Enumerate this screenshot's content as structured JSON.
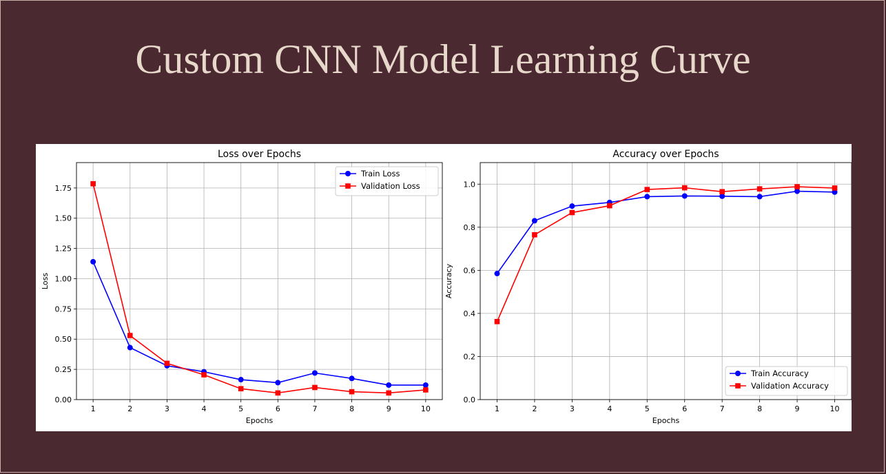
{
  "slide": {
    "title": "Custom CNN Model Learning Curve"
  },
  "chart_data": [
    {
      "type": "line",
      "title": "Loss over Epochs",
      "xlabel": "Epochs",
      "ylabel": "Loss",
      "x": [
        1,
        2,
        3,
        4,
        5,
        6,
        7,
        8,
        9,
        10
      ],
      "xlim": [
        0.55,
        10.45
      ],
      "ylim": [
        0,
        1.96
      ],
      "yticks": [
        0.0,
        0.25,
        0.5,
        0.75,
        1.0,
        1.25,
        1.5,
        1.75
      ],
      "ytick_labels": [
        "0.00",
        "0.25",
        "0.50",
        "0.75",
        "1.00",
        "1.25",
        "1.50",
        "1.75"
      ],
      "xtick_labels": [
        "1",
        "2",
        "3",
        "4",
        "5",
        "6",
        "7",
        "8",
        "9",
        "10"
      ],
      "grid": true,
      "legend_position": "top-right",
      "series": [
        {
          "name": "Train Loss",
          "color": "#0000ff",
          "marker": "circle",
          "values": [
            1.14,
            0.43,
            0.28,
            0.23,
            0.165,
            0.14,
            0.22,
            0.175,
            0.12,
            0.12
          ]
        },
        {
          "name": "Validation Loss",
          "color": "#ff0000",
          "marker": "square",
          "values": [
            1.785,
            0.53,
            0.3,
            0.205,
            0.09,
            0.055,
            0.1,
            0.065,
            0.055,
            0.08
          ]
        }
      ]
    },
    {
      "type": "line",
      "title": "Accuracy over Epochs",
      "xlabel": "Epochs",
      "ylabel": "Accuracy",
      "x": [
        1,
        2,
        3,
        4,
        5,
        6,
        7,
        8,
        9,
        10
      ],
      "xlim": [
        0.55,
        10.45
      ],
      "ylim": [
        0,
        1.1
      ],
      "yticks": [
        0.0,
        0.2,
        0.4,
        0.6,
        0.8,
        1.0
      ],
      "ytick_labels": [
        "0.0",
        "0.2",
        "0.4",
        "0.6",
        "0.8",
        "1.0"
      ],
      "xtick_labels": [
        "1",
        "2",
        "3",
        "4",
        "5",
        "6",
        "7",
        "8",
        "9",
        "10"
      ],
      "grid": true,
      "legend_position": "bottom-right",
      "series": [
        {
          "name": "Train Accuracy",
          "color": "#0000ff",
          "marker": "circle",
          "values": [
            0.585,
            0.83,
            0.898,
            0.915,
            0.942,
            0.945,
            0.944,
            0.942,
            0.967,
            0.963
          ]
        },
        {
          "name": "Validation Accuracy",
          "color": "#ff0000",
          "marker": "square",
          "values": [
            0.362,
            0.765,
            0.868,
            0.9,
            0.975,
            0.983,
            0.965,
            0.978,
            0.988,
            0.982
          ]
        }
      ]
    }
  ]
}
